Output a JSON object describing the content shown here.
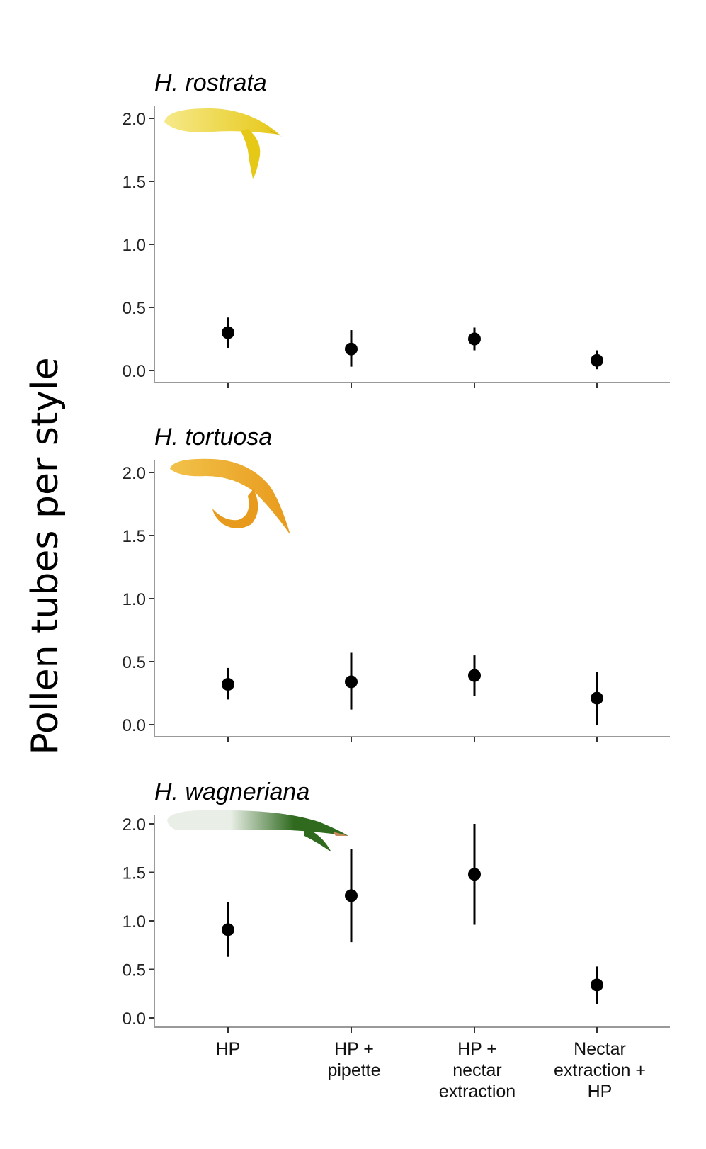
{
  "figure": {
    "ylabel": "Pollen tubes per style"
  },
  "chart_data": [
    {
      "type": "scatter",
      "title": "H. rostrata",
      "ylim": [
        0,
        2.0
      ],
      "yticks": [
        "0.0",
        "0.5",
        "1.0",
        "1.5",
        "2.0"
      ],
      "categories": [
        "HP",
        "HP + pipette",
        "HP + nectar extraction",
        "Nectar extraction + HP"
      ],
      "values": [
        0.3,
        0.17,
        0.25,
        0.08
      ],
      "err_low": [
        0.18,
        0.03,
        0.16,
        0.01
      ],
      "err_high": [
        0.42,
        0.32,
        0.34,
        0.16
      ],
      "flower_colors": [
        "#f6e98a",
        "#e6c817"
      ],
      "grid": false
    },
    {
      "type": "scatter",
      "title": "H. tortuosa",
      "ylim": [
        0,
        2.0
      ],
      "yticks": [
        "0.0",
        "0.5",
        "1.0",
        "1.5",
        "2.0"
      ],
      "categories": [
        "HP",
        "HP + pipette",
        "HP + nectar extraction",
        "Nectar extraction + HP"
      ],
      "values": [
        0.32,
        0.34,
        0.39,
        0.21
      ],
      "err_low": [
        0.2,
        0.12,
        0.23,
        0.0
      ],
      "err_high": [
        0.45,
        0.57,
        0.55,
        0.42
      ],
      "flower_colors": [
        "#f2c24a",
        "#e89a1c"
      ],
      "grid": false
    },
    {
      "type": "scatter",
      "title": "H. wagneriana",
      "ylim": [
        0,
        2.0
      ],
      "yticks": [
        "0.0",
        "0.5",
        "1.0",
        "1.5",
        "2.0"
      ],
      "categories": [
        "HP",
        "HP + pipette",
        "HP + nectar extraction",
        "Nectar extraction + HP"
      ],
      "values": [
        0.91,
        1.26,
        1.48,
        0.34
      ],
      "err_low": [
        0.63,
        0.78,
        0.96,
        0.14
      ],
      "err_high": [
        1.19,
        1.74,
        2.0,
        0.53
      ],
      "flower_colors": [
        "#e9eee6",
        "#2f6a1f"
      ],
      "grid": false
    }
  ],
  "xtick_labels": [
    [
      "HP"
    ],
    [
      "HP +",
      "pipette"
    ],
    [
      "HP +",
      "nectar",
      "extraction"
    ],
    [
      "Nectar",
      "extraction +",
      "HP"
    ]
  ]
}
